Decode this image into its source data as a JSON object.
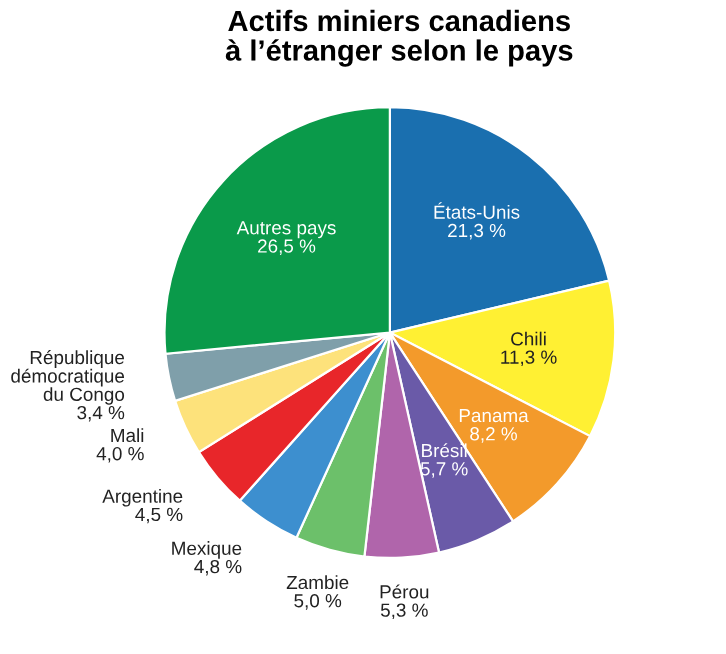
{
  "chart_data": {
    "type": "pie",
    "title": "Actifs miniers canadiens\nà l’étranger selon le pays",
    "categories": [
      "États-Unis",
      "Chili",
      "Panama",
      "Brésil",
      "Pérou",
      "Zambie",
      "Mexique",
      "Argentine",
      "Mali",
      "République\ndémocratique\ndu Congo",
      "Autres pays"
    ],
    "values": [
      21.3,
      11.3,
      8.2,
      5.7,
      5.3,
      5.0,
      4.8,
      4.5,
      4.0,
      3.4,
      26.5
    ],
    "value_labels": [
      "21,3 %",
      "11,3 %",
      "8,2 %",
      "5,7 %",
      "5,3 %",
      "5,0 %",
      "4,8 %",
      "4,5 %",
      "4,0 %",
      "3,4 %",
      "26,5 %"
    ],
    "colors": [
      "#1a6faf",
      "#fff033",
      "#f39a2b",
      "#6a5aa8",
      "#b065ab",
      "#6cc06a",
      "#3d8fcf",
      "#e8262a",
      "#fde27b",
      "#7f9faa",
      "#0a9a4a"
    ],
    "legend": false
  }
}
